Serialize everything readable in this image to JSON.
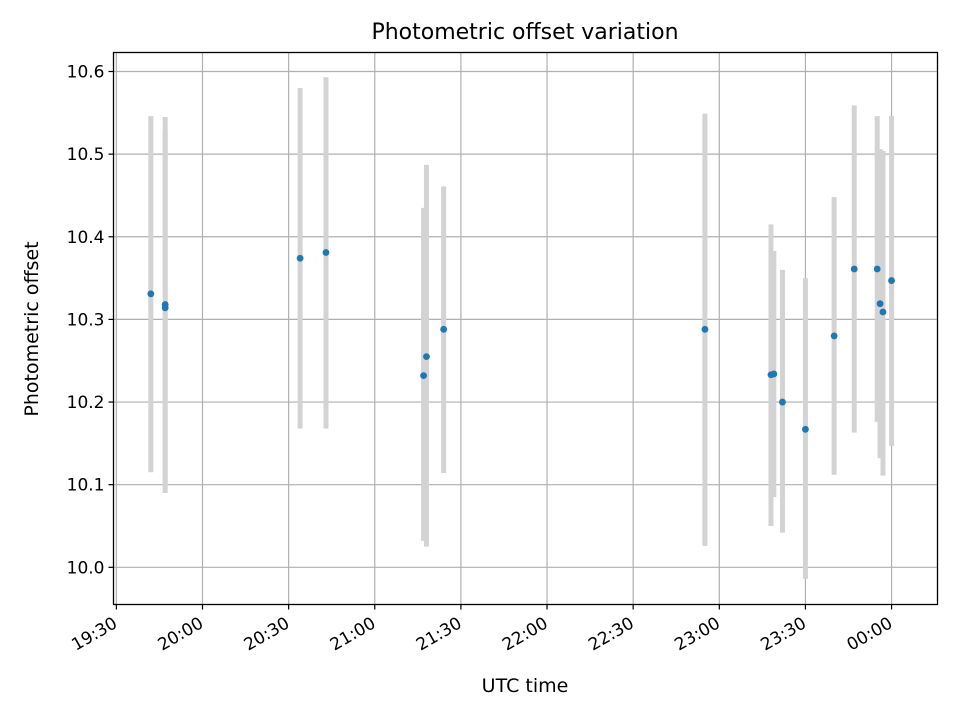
{
  "chart_data": {
    "type": "scatter",
    "title": "Photometric offset variation",
    "xlabel": "UTC time",
    "ylabel": "Photometric offset",
    "x_tick_labels": [
      "19:30",
      "20:00",
      "20:30",
      "21:00",
      "21:30",
      "22:00",
      "22:30",
      "23:00",
      "23:30",
      "00:00"
    ],
    "y_tick_labels": [
      "10.0",
      "10.1",
      "10.2",
      "10.3",
      "10.4",
      "10.5",
      "10.6"
    ],
    "y_ticks": [
      10.0,
      10.1,
      10.2,
      10.3,
      10.4,
      10.5,
      10.6
    ],
    "xlim": [
      "19:29",
      "00:16"
    ],
    "ylim": [
      9.955,
      10.623
    ],
    "grid": true,
    "colors": {
      "point": "#1f77b4",
      "error_bar": "#d3d3d3",
      "grid": "#b0b0b0"
    },
    "points": [
      {
        "time": "19:42",
        "y": 10.331,
        "y_low": 10.115,
        "y_high": 10.546
      },
      {
        "time": "19:47",
        "y": 10.318,
        "y_low": 10.09,
        "y_high": 10.545
      },
      {
        "time": "19:47",
        "y": 10.314,
        "y_low": 10.098,
        "y_high": 10.528
      },
      {
        "time": "20:34",
        "y": 10.374,
        "y_low": 10.168,
        "y_high": 10.58
      },
      {
        "time": "20:43",
        "y": 10.381,
        "y_low": 10.168,
        "y_high": 10.593
      },
      {
        "time": "21:17",
        "y": 10.232,
        "y_low": 10.032,
        "y_high": 10.435
      },
      {
        "time": "21:18",
        "y": 10.255,
        "y_low": 10.025,
        "y_high": 10.487
      },
      {
        "time": "21:24",
        "y": 10.288,
        "y_low": 10.114,
        "y_high": 10.461
      },
      {
        "time": "22:55",
        "y": 10.288,
        "y_low": 10.026,
        "y_high": 10.549
      },
      {
        "time": "23:18",
        "y": 10.233,
        "y_low": 10.05,
        "y_high": 10.415
      },
      {
        "time": "23:19",
        "y": 10.234,
        "y_low": 10.085,
        "y_high": 10.383
      },
      {
        "time": "23:22",
        "y": 10.2,
        "y_low": 10.042,
        "y_high": 10.36
      },
      {
        "time": "23:30",
        "y": 10.167,
        "y_low": 9.986,
        "y_high": 10.35
      },
      {
        "time": "23:40",
        "y": 10.28,
        "y_low": 10.112,
        "y_high": 10.448
      },
      {
        "time": "23:47",
        "y": 10.361,
        "y_low": 10.163,
        "y_high": 10.559
      },
      {
        "time": "23:55",
        "y": 10.361,
        "y_low": 10.176,
        "y_high": 10.546
      },
      {
        "time": "23:56",
        "y": 10.319,
        "y_low": 10.132,
        "y_high": 10.506
      },
      {
        "time": "23:57",
        "y": 10.309,
        "y_low": 10.111,
        "y_high": 10.504
      },
      {
        "time": "00:00",
        "y": 10.347,
        "y_low": 10.147,
        "y_high": 10.546
      }
    ]
  }
}
